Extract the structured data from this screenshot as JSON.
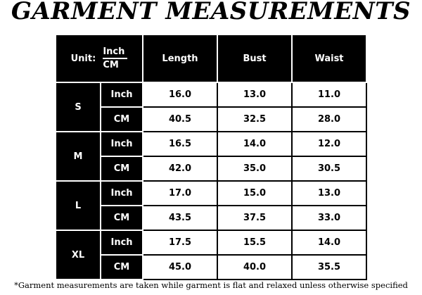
{
  "title": "GARMENT MEASUREMENTS",
  "header": {
    "unit_label": "Unit:",
    "unit_inch": "Inch",
    "unit_cm": "CM",
    "columns": [
      "Length",
      "Bust",
      "Waist"
    ]
  },
  "rows": [
    {
      "size": "S",
      "inch": {
        "unit": "Inch",
        "values": [
          "16.0",
          "13.0",
          "11.0"
        ]
      },
      "cm": {
        "unit": "CM",
        "values": [
          "40.5",
          "32.5",
          "28.0"
        ]
      }
    },
    {
      "size": "M",
      "inch": {
        "unit": "Inch",
        "values": [
          "16.5",
          "14.0",
          "12.0"
        ]
      },
      "cm": {
        "unit": "CM",
        "values": [
          "42.0",
          "35.0",
          "30.5"
        ]
      }
    },
    {
      "size": "L",
      "inch": {
        "unit": "Inch",
        "values": [
          "17.0",
          "15.0",
          "13.0"
        ]
      },
      "cm": {
        "unit": "CM",
        "values": [
          "43.5",
          "37.5",
          "33.0"
        ]
      }
    },
    {
      "size": "XL",
      "inch": {
        "unit": "Inch",
        "values": [
          "17.5",
          "15.5",
          "14.0"
        ]
      },
      "cm": {
        "unit": "CM",
        "values": [
          "45.0",
          "40.0",
          "35.5"
        ]
      }
    }
  ],
  "note": "*Garment measurements are taken while garment is flat and relaxed unless otherwise specified"
}
